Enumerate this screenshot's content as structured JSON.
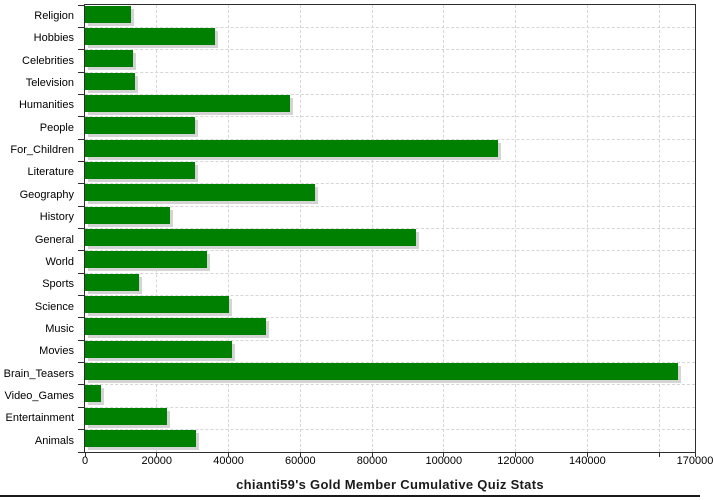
{
  "chart_data": {
    "type": "bar",
    "orientation": "horizontal",
    "title": "chianti59's Gold Member Cumulative Quiz Stats",
    "categories": [
      "Religion",
      "Hobbies",
      "Celebrities",
      "Television",
      "Humanities",
      "People",
      "For_Children",
      "Literature",
      "Geography",
      "History",
      "General",
      "World",
      "Sports",
      "Science",
      "Music",
      "Movies",
      "Brain_Teasers",
      "Video_Games",
      "Entertainment",
      "Animals"
    ],
    "values": [
      12800,
      36100,
      13500,
      14000,
      57200,
      30700,
      115200,
      30600,
      64200,
      23800,
      92200,
      34100,
      15000,
      40000,
      50500,
      41000,
      165400,
      4400,
      22900,
      30800
    ],
    "xlim": [
      0,
      170000
    ],
    "x_ticks": [
      0,
      20000,
      40000,
      60000,
      80000,
      100000,
      120000,
      140000,
      160000,
      170000
    ],
    "x_tick_labels": [
      "0",
      "20000",
      "40000",
      "60000",
      "80000",
      "100000",
      "120000",
      "140000",
      "",
      "170000"
    ],
    "xlabel": "",
    "ylabel": "",
    "grid": true,
    "legend": false,
    "bar_color": "#008000",
    "shadow_color": "#d4d4d4",
    "grid_color": "#d6d6d6",
    "axis_color": "#2e2e2e",
    "text_color": "#000000",
    "background_color": "#ffffff"
  }
}
